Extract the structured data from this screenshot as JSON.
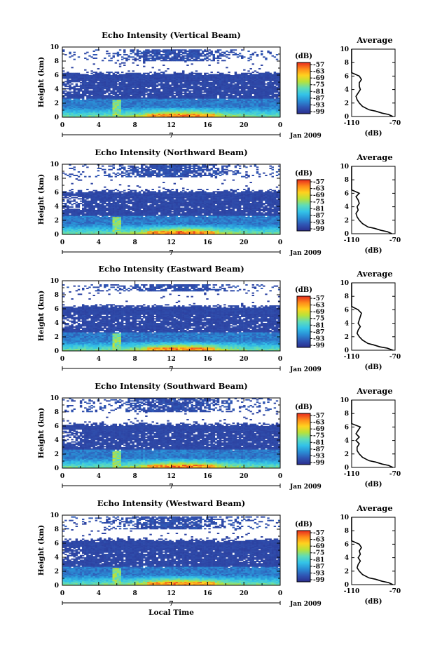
{
  "chart_data": [
    {
      "type": "heatmap",
      "title": "Echo Intensity (Vertical Beam)",
      "ylabel": "Height (km)",
      "yticks": [
        "0",
        "2",
        "4",
        "6",
        "8",
        "10"
      ],
      "xticks": [
        "0",
        "4",
        "8",
        "12",
        "16",
        "20",
        "0"
      ],
      "x_range": [
        0,
        24
      ],
      "y_range": [
        0,
        10
      ],
      "day_marker": "7",
      "month_label": "Jan 2009",
      "colorbar_label": "(dB)",
      "colorbar_ticks": [
        "-57",
        "-63",
        "-69",
        "-75",
        "-81",
        "-87",
        "-93",
        "-99"
      ],
      "cloud_top_km": 6.3,
      "upper_layer_km": [
        8.0,
        9.7
      ],
      "average_profile": {
        "title": "Average",
        "xlabel": "(dB)",
        "xticks": [
          "-110",
          "-70"
        ],
        "yticks": [
          "0",
          "2",
          "4",
          "6",
          "8",
          "10"
        ],
        "xlim": [
          -110,
          -70
        ],
        "ylim": [
          0,
          10
        ],
        "height_km": [
          0,
          0.3,
          0.5,
          0.8,
          1.0,
          1.5,
          2.0,
          2.5,
          3.0,
          3.5,
          4.0,
          4.5,
          5.0,
          5.5,
          6.0,
          6.5,
          7.0,
          7.5,
          8.0,
          8.5,
          9.0,
          9.5,
          10.0
        ],
        "db": [
          -72,
          -76,
          -82,
          -88,
          -94,
          -100,
          -103,
          -105,
          -106,
          -104,
          -102,
          -103,
          -103,
          -101,
          -103,
          -110,
          -110,
          -111,
          -111,
          -112,
          -110,
          -112,
          -113
        ]
      }
    },
    {
      "type": "heatmap",
      "title": "Echo Intensity (Northward Beam)",
      "ylabel": "Height (km)",
      "yticks": [
        "0",
        "2",
        "4",
        "6",
        "8",
        "10"
      ],
      "xticks": [
        "0",
        "4",
        "8",
        "12",
        "16",
        "20",
        "0"
      ],
      "x_range": [
        0,
        24
      ],
      "y_range": [
        0,
        10
      ],
      "day_marker": "7",
      "month_label": "Jan 2009",
      "colorbar_label": "(dB)",
      "colorbar_ticks": [
        "-57",
        "-63",
        "-69",
        "-75",
        "-81",
        "-87",
        "-93",
        "-99"
      ],
      "cloud_top_km": 6.2,
      "upper_layer_km": [
        8.2,
        10.0
      ],
      "average_profile": {
        "title": "Average",
        "xlabel": "(dB)",
        "xticks": [
          "-110",
          "-70"
        ],
        "yticks": [
          "0",
          "2",
          "4",
          "6",
          "8",
          "10"
        ],
        "xlim": [
          -110,
          -70
        ],
        "ylim": [
          0,
          10
        ],
        "height_km": [
          0,
          0.3,
          0.5,
          0.8,
          1.0,
          1.5,
          2.0,
          2.5,
          3.0,
          3.5,
          4.0,
          4.5,
          5.0,
          5.5,
          6.0,
          6.5,
          7.0,
          7.5,
          8.0,
          8.5,
          9.0,
          9.5,
          10.0
        ],
        "db": [
          -73,
          -77,
          -83,
          -89,
          -95,
          -100,
          -103,
          -105,
          -106,
          -104,
          -105,
          -103,
          -104,
          -106,
          -103,
          -110,
          -111,
          -111,
          -111,
          -112,
          -111,
          -112,
          -113
        ]
      }
    },
    {
      "type": "heatmap",
      "title": "Echo Intensity (Eastward Beam)",
      "ylabel": "Height (km)",
      "yticks": [
        "0",
        "2",
        "4",
        "6",
        "8",
        "10"
      ],
      "xticks": [
        "0",
        "4",
        "8",
        "12",
        "16",
        "20",
        "0"
      ],
      "x_range": [
        0,
        24
      ],
      "y_range": [
        0,
        10
      ],
      "day_marker": "7",
      "month_label": "Jan 2009",
      "colorbar_label": "(dB)",
      "colorbar_ticks": [
        "-57",
        "-63",
        "-69",
        "-75",
        "-81",
        "-87",
        "-93",
        "-99"
      ],
      "cloud_top_km": 6.4,
      "upper_layer_km": [
        8.5,
        9.5
      ],
      "average_profile": {
        "title": "Average",
        "xlabel": "(dB)",
        "xticks": [
          "-110",
          "-70"
        ],
        "yticks": [
          "0",
          "2",
          "4",
          "6",
          "8",
          "10"
        ],
        "xlim": [
          -110,
          -70
        ],
        "ylim": [
          0,
          10
        ],
        "height_km": [
          0,
          0.3,
          0.5,
          0.8,
          1.0,
          1.5,
          2.0,
          2.5,
          3.0,
          3.5,
          4.0,
          4.5,
          5.0,
          5.5,
          6.0,
          6.5,
          7.0,
          7.5,
          8.0,
          8.5,
          9.0,
          9.5,
          10.0
        ],
        "db": [
          -72,
          -77,
          -84,
          -90,
          -95,
          -100,
          -103,
          -105,
          -104,
          -102,
          -104,
          -103,
          -102,
          -101,
          -104,
          -110,
          -111,
          -111,
          -112,
          -112,
          -111,
          -112,
          -113
        ]
      }
    },
    {
      "type": "heatmap",
      "title": "Echo Intensity (Southward Beam)",
      "ylabel": "Height (km)",
      "yticks": [
        "0",
        "2",
        "4",
        "6",
        "8",
        "10"
      ],
      "xticks": [
        "0",
        "4",
        "8",
        "12",
        "16",
        "20",
        "0"
      ],
      "x_range": [
        0,
        24
      ],
      "y_range": [
        0,
        10
      ],
      "day_marker": "7",
      "month_label": "Jan 2009",
      "colorbar_label": "(dB)",
      "colorbar_ticks": [
        "-57",
        "-63",
        "-69",
        "-75",
        "-81",
        "-87",
        "-93",
        "-99"
      ],
      "cloud_top_km": 6.3,
      "upper_layer_km": [
        8.0,
        10.0
      ],
      "average_profile": {
        "title": "Average",
        "xlabel": "(dB)",
        "xticks": [
          "-110",
          "-70"
        ],
        "yticks": [
          "0",
          "2",
          "4",
          "6",
          "8",
          "10"
        ],
        "xlim": [
          -110,
          -70
        ],
        "ylim": [
          0,
          10
        ],
        "height_km": [
          0,
          0.3,
          0.5,
          0.8,
          1.0,
          1.5,
          2.0,
          2.5,
          3.0,
          3.5,
          4.0,
          4.5,
          5.0,
          5.5,
          6.0,
          6.5,
          7.0,
          7.5,
          8.0,
          8.5,
          9.0,
          9.5,
          10.0
        ],
        "db": [
          -72,
          -76,
          -82,
          -88,
          -94,
          -100,
          -103,
          -105,
          -105,
          -103,
          -106,
          -103,
          -106,
          -104,
          -102,
          -110,
          -111,
          -111,
          -111,
          -112,
          -111,
          -112,
          -113
        ]
      }
    },
    {
      "type": "heatmap",
      "title": "Echo Intensity (Westward Beam)",
      "ylabel": "Height (km)",
      "xlabel": "Local Time",
      "yticks": [
        "0",
        "2",
        "4",
        "6",
        "8",
        "10"
      ],
      "xticks": [
        "0",
        "4",
        "8",
        "12",
        "16",
        "20",
        "0"
      ],
      "x_range": [
        0,
        24
      ],
      "y_range": [
        0,
        10
      ],
      "day_marker": "7",
      "month_label": "Jan 2009",
      "colorbar_label": "(dB)",
      "colorbar_ticks": [
        "-57",
        "-63",
        "-69",
        "-75",
        "-81",
        "-87",
        "-93",
        "-99"
      ],
      "cloud_top_km": 6.5,
      "upper_layer_km": [
        8.0,
        9.8
      ],
      "average_profile": {
        "title": "Average",
        "xlabel": "(dB)",
        "xticks": [
          "-110",
          "-70"
        ],
        "yticks": [
          "0",
          "2",
          "4",
          "6",
          "8",
          "10"
        ],
        "xlim": [
          -110,
          -70
        ],
        "ylim": [
          0,
          10
        ],
        "height_km": [
          0,
          0.3,
          0.5,
          0.8,
          1.0,
          1.5,
          2.0,
          2.5,
          3.0,
          3.5,
          4.0,
          4.5,
          5.0,
          5.5,
          6.0,
          6.5,
          7.0,
          7.5,
          8.0,
          8.5,
          9.0,
          9.5,
          10.0
        ],
        "db": [
          -72,
          -76,
          -82,
          -88,
          -94,
          -100,
          -103,
          -105,
          -104,
          -102,
          -104,
          -102,
          -103,
          -101,
          -103,
          -110,
          -110,
          -111,
          -111,
          -112,
          -110,
          -112,
          -113
        ]
      }
    }
  ],
  "colors": {
    "background": "#ffffff",
    "colormap": [
      "#2b2e8e",
      "#2f56b4",
      "#2a8fd6",
      "#33c3e8",
      "#5fdcb8",
      "#b8e23a",
      "#ffd21e",
      "#ff8a1a",
      "#e82b1e"
    ]
  }
}
